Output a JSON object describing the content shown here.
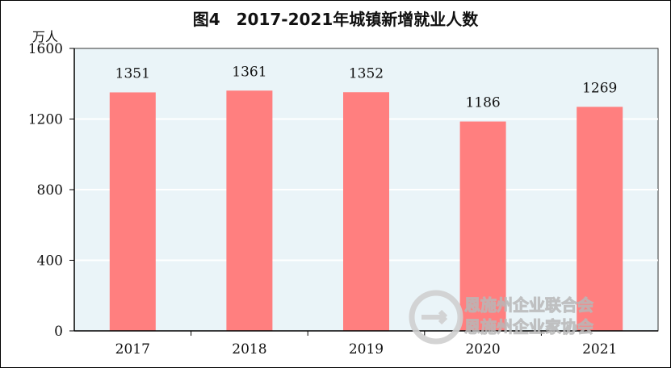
{
  "chart_data": {
    "type": "bar",
    "title": "图4　2017-2021年城镇新增就业人数",
    "unit_label": "万人",
    "categories": [
      "2017",
      "2018",
      "2019",
      "2020",
      "2021"
    ],
    "values": [
      1351,
      1361,
      1352,
      1186,
      1269
    ],
    "ylim": [
      0,
      1600
    ],
    "yticks": [
      0,
      400,
      800,
      1200,
      1600
    ],
    "grid": true,
    "legend": "none",
    "colors": {
      "bar": "#ff7f7f",
      "plot_background": "#eaf4f8",
      "gridline": "#ffffff",
      "axis": "#000000"
    }
  },
  "watermark": {
    "line1": "恩施州企业联合会",
    "line2": "恩施州企业家协会"
  }
}
